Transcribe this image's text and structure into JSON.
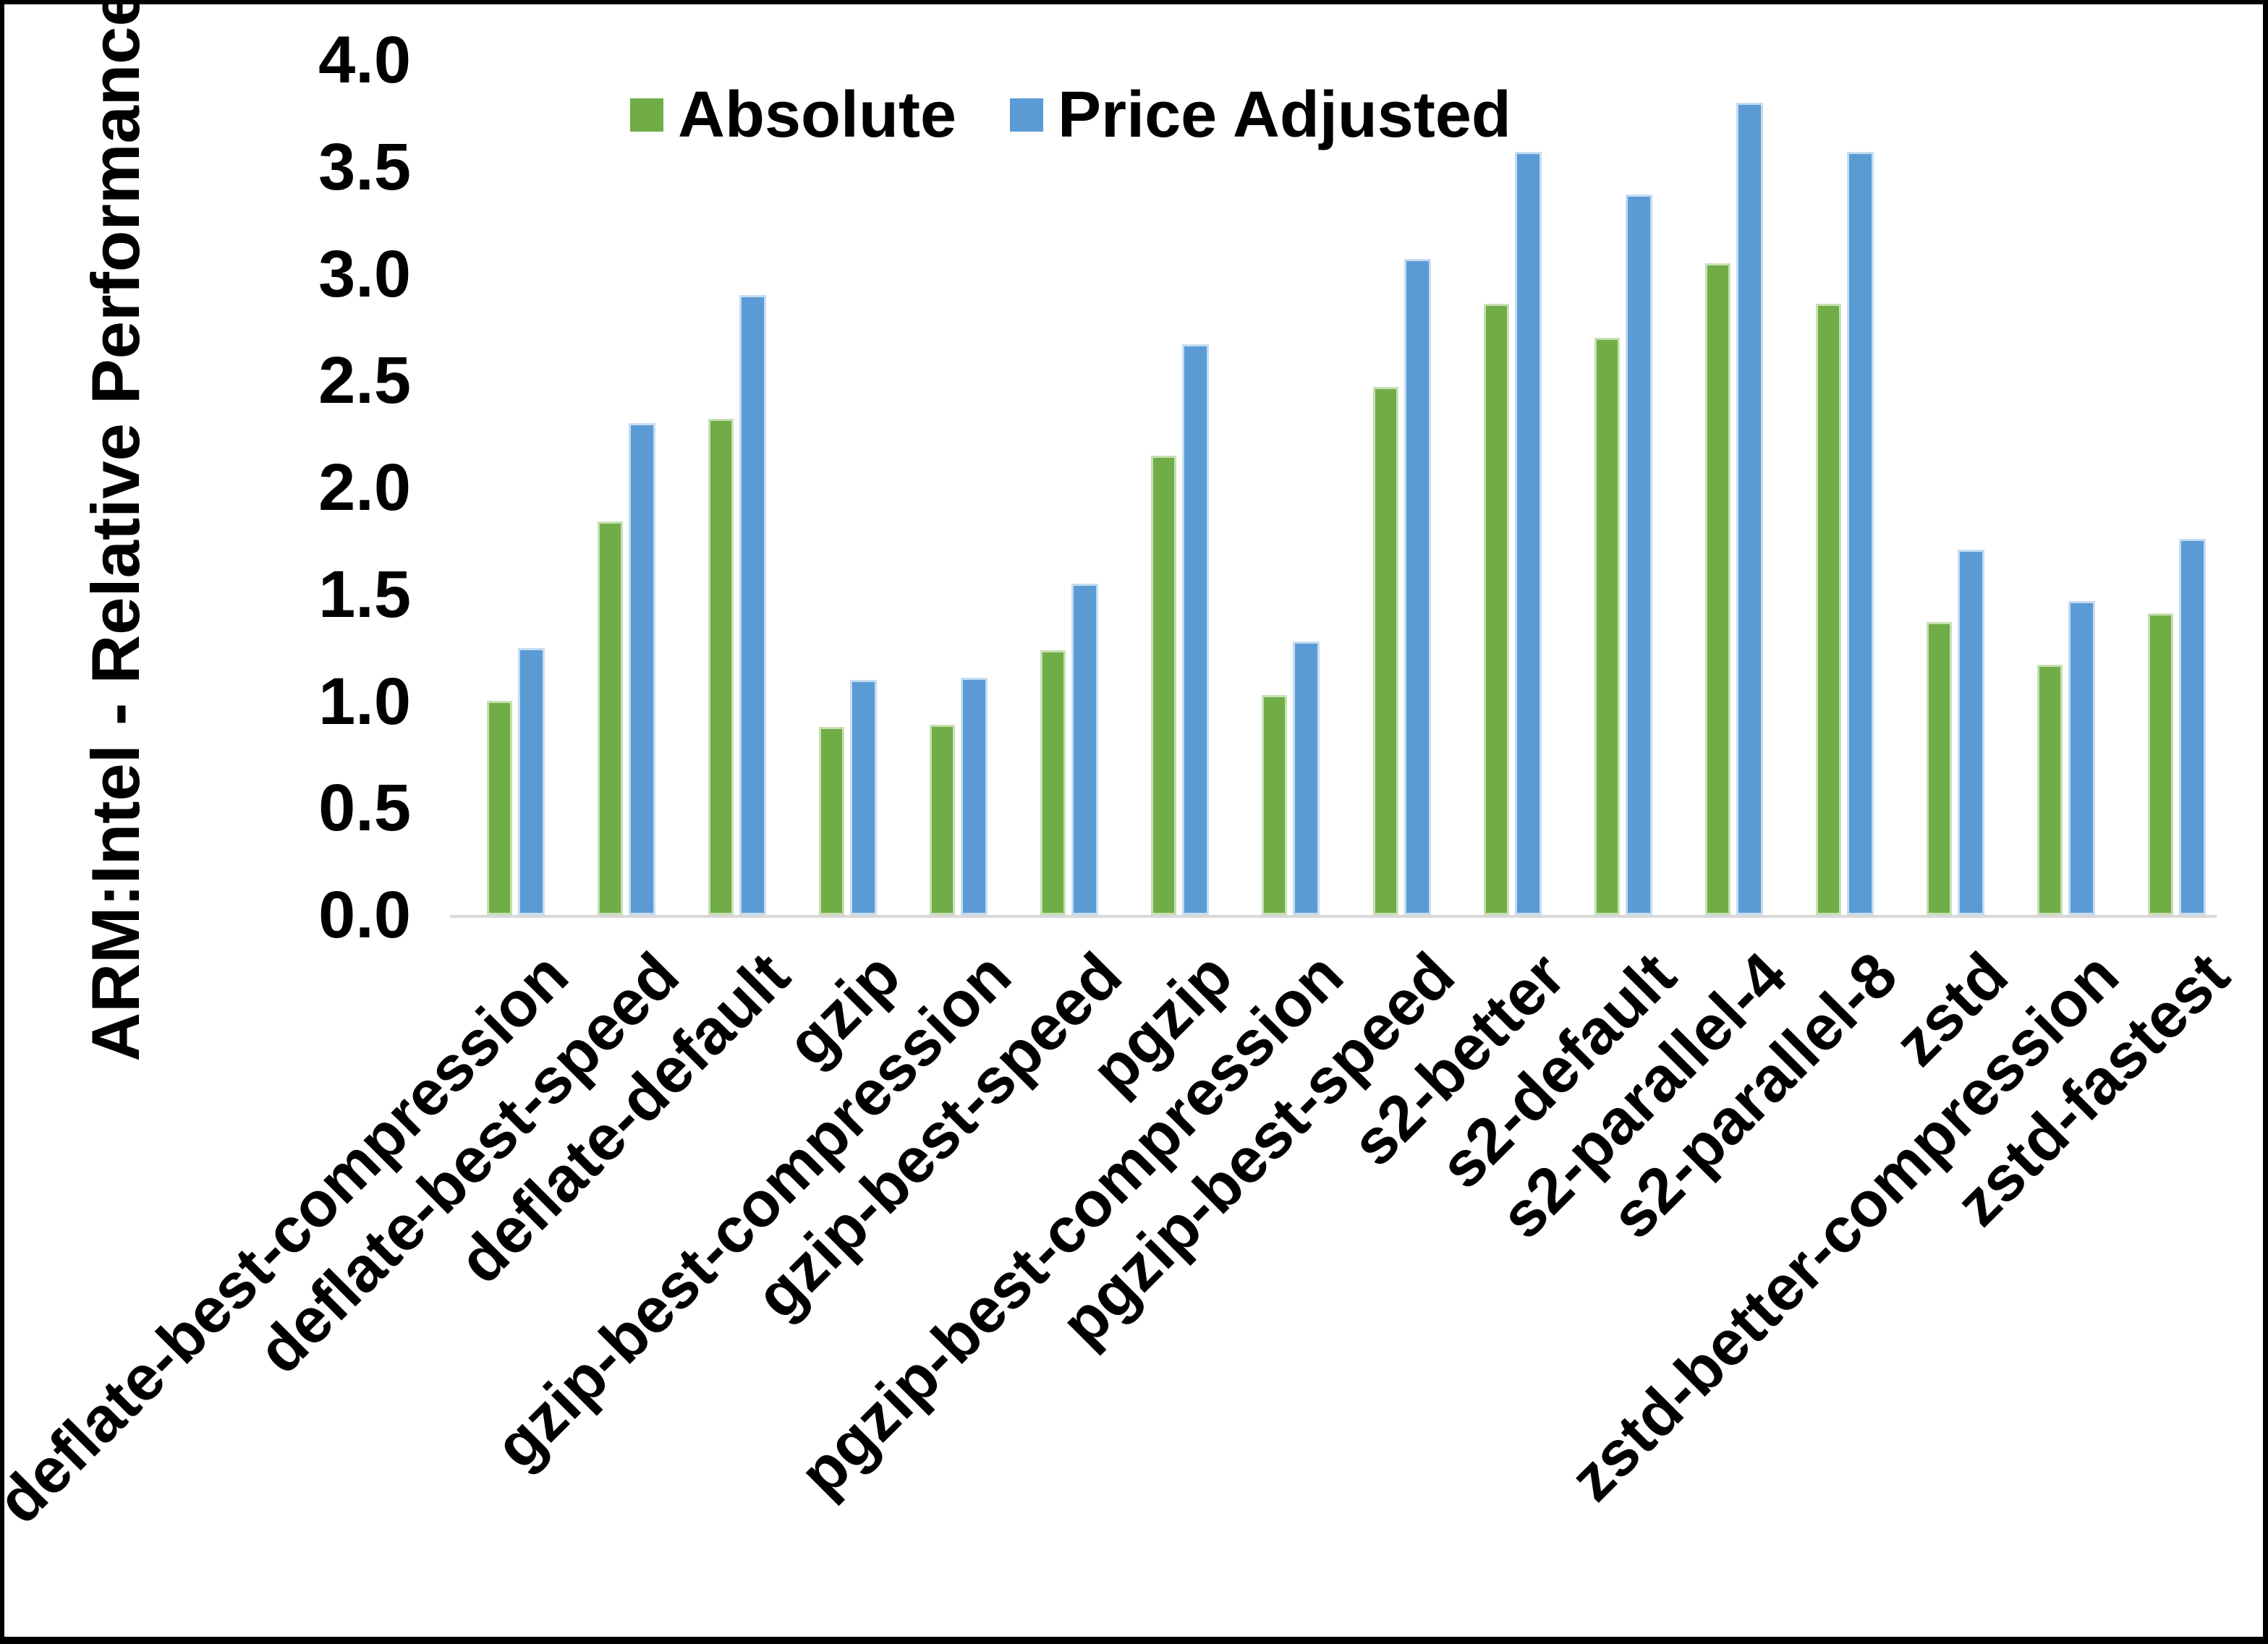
{
  "chart_data": {
    "type": "bar",
    "title": "",
    "ylabel": "ARM:Intel - Relative Performance",
    "xlabel": "",
    "ylim": [
      0.0,
      4.0
    ],
    "ytick_step": 0.5,
    "yticks": [
      "0.0",
      "0.5",
      "1.0",
      "1.5",
      "2.0",
      "2.5",
      "3.0",
      "3.5",
      "4.0"
    ],
    "grid": false,
    "legend_position": "top-center",
    "categories": [
      "deflate-best-compression",
      "deflate-best-speed",
      "deflate-default",
      "gzip",
      "gzip-best-compression",
      "gzip-best-speed",
      "pgzip",
      "pgzip-best-compression",
      "pgzip-best-speed",
      "s2-better",
      "s2-default",
      "s2-parallel-4",
      "s2-parallel-8",
      "zstd",
      "zstd-better-compression",
      "zstd-fastest"
    ],
    "series": [
      {
        "name": "Absolute",
        "color": "#70AD47",
        "values": [
          1.0,
          1.84,
          2.32,
          0.88,
          0.89,
          1.24,
          2.15,
          1.03,
          2.47,
          2.86,
          2.7,
          3.05,
          2.86,
          1.37,
          1.17,
          1.41
        ]
      },
      {
        "name": "Price Adjusted",
        "color": "#5B9BD5",
        "values": [
          1.25,
          2.3,
          2.9,
          1.1,
          1.11,
          1.55,
          2.67,
          1.28,
          3.07,
          3.57,
          3.37,
          3.8,
          3.57,
          1.71,
          1.47,
          1.76
        ]
      }
    ]
  }
}
